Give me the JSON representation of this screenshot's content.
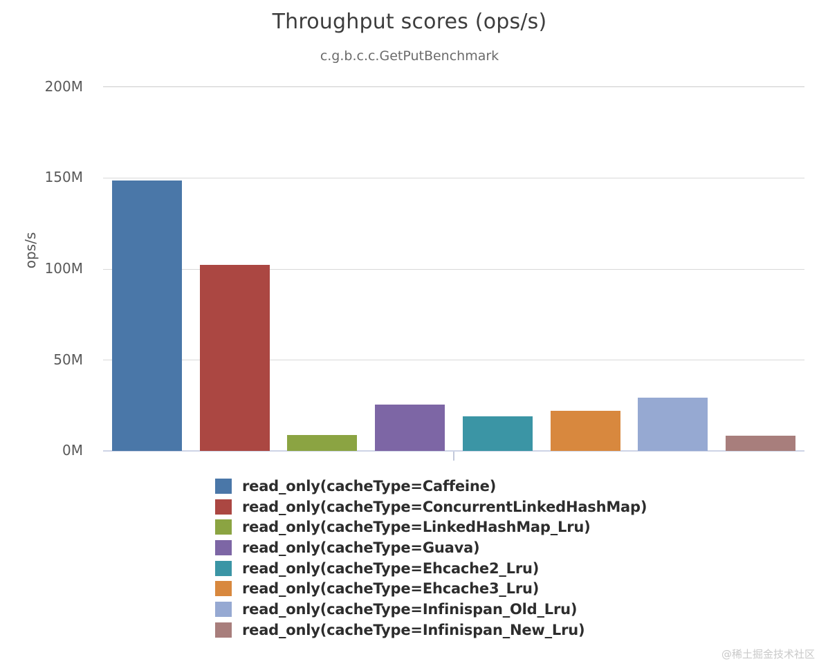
{
  "header": {
    "title": "Throughput scores (ops/s)",
    "subtitle": "c.g.b.c.c.GetPutBenchmark"
  },
  "axes": {
    "ylabel": "ops/s",
    "yticks": [
      "200M",
      "150M",
      "100M",
      "50M",
      "0M"
    ]
  },
  "watermark": "@稀土掘金技术社区",
  "chart_data": {
    "type": "bar",
    "title": "Throughput scores (ops/s)",
    "subtitle": "c.g.b.c.c.GetPutBenchmark",
    "xlabel": "",
    "ylabel": "ops/s",
    "ylim": [
      0,
      200000000
    ],
    "ytick_labels": [
      "0M",
      "50M",
      "100M",
      "150M",
      "200M"
    ],
    "grid": true,
    "legend_position": "bottom-left",
    "series": [
      {
        "name": "read_only(cacheType=Caffeine)",
        "value": 148400000,
        "value_label": "148.4M",
        "color": "#4a77a8"
      },
      {
        "name": "read_only(cacheType=ConcurrentLinkedHashMap)",
        "value": 102100000,
        "value_label": "102.1M",
        "color": "#ab4742"
      },
      {
        "name": "read_only(cacheType=LinkedHashMap_Lru)",
        "value": 8600000,
        "value_label": "8.6M",
        "color": "#8ba442"
      },
      {
        "name": "read_only(cacheType=Guava)",
        "value": 25300000,
        "value_label": "25.3M",
        "color": "#7d66a5"
      },
      {
        "name": "read_only(cacheType=Ehcache2_Lru)",
        "value": 18900000,
        "value_label": "18.9M",
        "color": "#3b95a5"
      },
      {
        "name": "read_only(cacheType=Ehcache3_Lru)",
        "value": 22200000,
        "value_label": "22.2M",
        "color": "#d8883e"
      },
      {
        "name": "read_only(cacheType=Infinispan_Old_Lru)",
        "value": 29400000,
        "value_label": "29.4M",
        "color": "#96a9d2"
      },
      {
        "name": "read_only(cacheType=Infinispan_New_Lru)",
        "value": 8400000,
        "value_label": "8.4M",
        "color": "#a87e7c"
      }
    ]
  }
}
